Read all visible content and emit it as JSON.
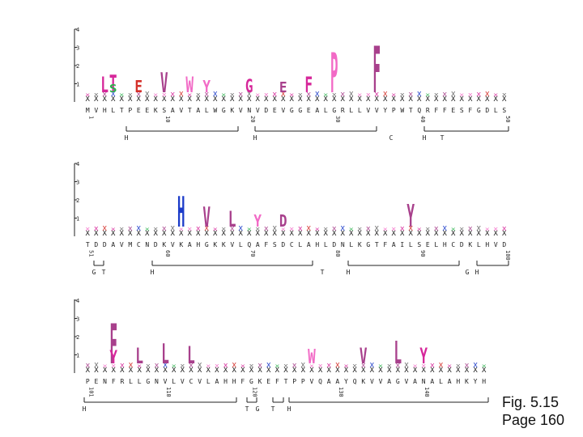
{
  "figure": {
    "label": "Fig. 5.15",
    "page": "Page 160"
  },
  "colors": {
    "magenta": "#d6279a",
    "purple": "#a8408c",
    "pink": "#f26ac6",
    "green": "#28b04a",
    "blue": "#1c3cc9",
    "red": "#d4302a",
    "grey": "#6a6a6a",
    "dark": "#222222"
  },
  "panels": [
    {
      "y_ticks": [
        "4",
        "3",
        "2",
        "1"
      ],
      "sequence": "MVHLTPEEKSAVTALWGKVNVDEVGGEALGRLLVVYPWTQRFFESFGDLS",
      "position_labels": [
        "1",
        "10",
        "20",
        "30",
        "40",
        "50"
      ],
      "structure_labels": [
        "H",
        "H",
        "C",
        "H",
        "T"
      ],
      "big_letters": [
        {
          "letter": "L",
          "col": 2,
          "height": 1.2,
          "color": "magenta"
        },
        {
          "letter": "T",
          "col": 3,
          "height": 1.3,
          "color": "magenta"
        },
        {
          "letter": "S",
          "col": 3,
          "height": 0.6,
          "color": "green"
        },
        {
          "letter": "E",
          "col": 6,
          "height": 0.9,
          "color": "red"
        },
        {
          "letter": "V",
          "col": 9,
          "height": 1.5,
          "color": "purple"
        },
        {
          "letter": "W",
          "col": 12,
          "height": 1.2,
          "color": "pink"
        },
        {
          "letter": "Y",
          "col": 14,
          "height": 0.9,
          "color": "pink"
        },
        {
          "letter": "G",
          "col": 19,
          "height": 1.0,
          "color": "magenta"
        },
        {
          "letter": "E",
          "col": 23,
          "height": 0.8,
          "color": "purple"
        },
        {
          "letter": "F",
          "col": 26,
          "height": 1.2,
          "color": "magenta"
        },
        {
          "letter": "P",
          "col": 29,
          "height": 3.0,
          "color": "pink"
        },
        {
          "letter": "F",
          "col": 34,
          "height": 3.5,
          "color": "purple"
        }
      ]
    },
    {
      "y_ticks": [
        "4",
        "3",
        "2",
        "1"
      ],
      "sequence": "TDDAVMCNDKVKAHGKKVLQAFSDCLAHLDNLKGTFAILSELHCDKLHVD",
      "position_labels": [
        "51",
        "60",
        "70",
        "80",
        "90",
        "100"
      ],
      "structure_labels": [
        "G",
        "T",
        "H",
        "T",
        "H",
        "G",
        "H"
      ],
      "big_letters": [
        {
          "letter": "H",
          "col": 11,
          "height": 2.3,
          "color": "blue"
        },
        {
          "letter": "V",
          "col": 14,
          "height": 1.5,
          "color": "purple"
        },
        {
          "letter": "L",
          "col": 17,
          "height": 1.2,
          "color": "purple"
        },
        {
          "letter": "Y",
          "col": 20,
          "height": 0.9,
          "color": "pink"
        },
        {
          "letter": "D",
          "col": 23,
          "height": 0.9,
          "color": "purple"
        },
        {
          "letter": "Y",
          "col": 38,
          "height": 1.7,
          "color": "purple"
        }
      ]
    },
    {
      "y_ticks": [
        "4",
        "3",
        "2",
        "1"
      ],
      "sequence": "PENFRLLGNVLVCVLAHHFGKEFTPPVQAAYQKVVAGVANALAHKYH",
      "position_labels": [
        "101",
        "110",
        "120",
        "130",
        "140"
      ],
      "structure_labels": [
        "H",
        "T",
        "G",
        "T",
        "H"
      ],
      "big_letters": [
        {
          "letter": "F",
          "col": 3,
          "height": 3.0,
          "color": "purple"
        },
        {
          "letter": "Y",
          "col": 3,
          "height": 1.0,
          "color": "magenta"
        },
        {
          "letter": "L",
          "col": 6,
          "height": 1.2,
          "color": "purple"
        },
        {
          "letter": "L",
          "col": 9,
          "height": 1.5,
          "color": "purple"
        },
        {
          "letter": "L",
          "col": 12,
          "height": 1.3,
          "color": "purple"
        },
        {
          "letter": "W",
          "col": 26,
          "height": 1.1,
          "color": "pink"
        },
        {
          "letter": "V",
          "col": 32,
          "height": 1.2,
          "color": "purple"
        },
        {
          "letter": "L",
          "col": 36,
          "height": 1.7,
          "color": "purple"
        },
        {
          "letter": "Y",
          "col": 39,
          "height": 1.2,
          "color": "magenta"
        }
      ]
    }
  ]
}
